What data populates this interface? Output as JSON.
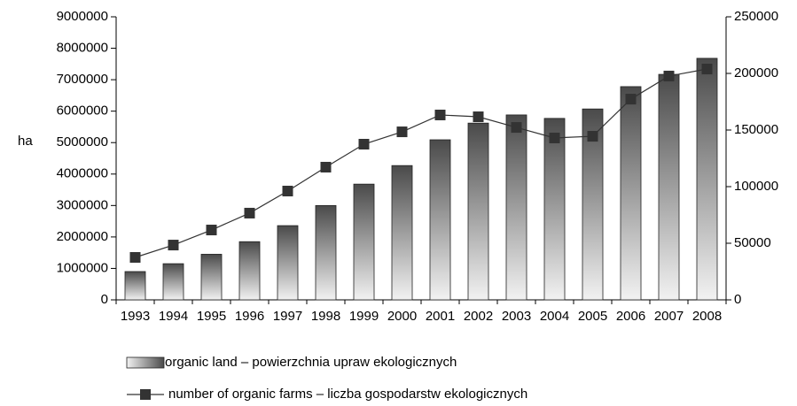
{
  "chart_data": {
    "type": "bar+line",
    "y_label": "ha",
    "categories": [
      "1993",
      "1994",
      "1995",
      "1996",
      "1997",
      "1998",
      "1999",
      "2000",
      "2001",
      "2002",
      "2003",
      "2004",
      "2005",
      "2006",
      "2007",
      "2008"
    ],
    "series": [
      {
        "name": "organic land – powierzchnia upraw ekologicznych",
        "type": "bar",
        "color": "#555555",
        "values": [
          900000,
          1150000,
          1450000,
          1850000,
          2360000,
          3000000,
          3680000,
          4270000,
          5090000,
          5620000,
          5880000,
          5770000,
          6070000,
          6780000,
          7170000,
          7680000
        ]
      },
      {
        "name": "number of organic farms – liczba gospodarstw ekologicznych",
        "type": "line",
        "axis": "y2",
        "color": "#333333",
        "values": [
          37500,
          48400,
          61700,
          76600,
          96100,
          117200,
          137500,
          148400,
          163300,
          161700,
          152300,
          143000,
          144500,
          177300,
          197700,
          203900
        ]
      }
    ],
    "ylim": [
      0,
      9000000
    ],
    "yticks": [
      0,
      1000000,
      2000000,
      3000000,
      4000000,
      5000000,
      6000000,
      7000000,
      8000000,
      9000000
    ],
    "y2lim": [
      0,
      250000
    ],
    "y2ticks": [
      0,
      50000,
      100000,
      150000,
      200000,
      250000
    ]
  }
}
